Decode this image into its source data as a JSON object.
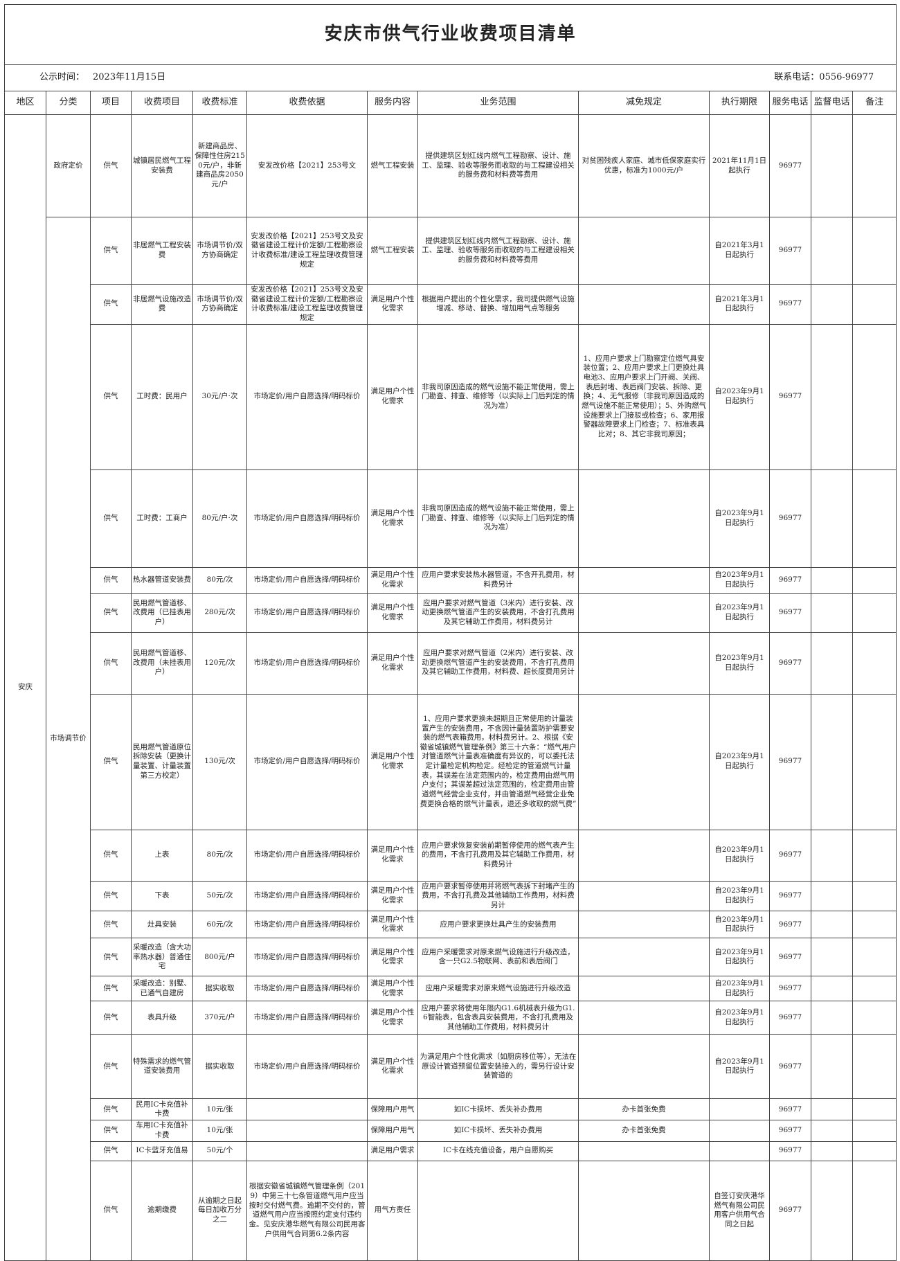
{
  "header": {
    "title": "安庆市供气行业收费项目清单",
    "date_label": "公示时间：",
    "date": "2023年11月15日",
    "phone_label": "联系电话：",
    "phone": "0556-96977"
  },
  "table": {
    "columns": [
      "地区",
      "分类",
      "项目",
      "收费项目",
      "收费标准",
      "收费依据",
      "服务内容",
      "业务范围",
      "减免规定",
      "执行期限",
      "服务电话",
      "监督电话",
      "备注"
    ],
    "region": "安庆",
    "groups": [
      {
        "label": "政府定价",
        "rows": 1
      },
      {
        "label": "市场调节价",
        "rows": 19
      }
    ],
    "rows": [
      {
        "item": "供气",
        "name": "城镇居民燃气工程安装费",
        "standard": "新建商品房、保障性住房2150元/户，非新建商品房2050元/户",
        "basis": "安发改价格【2021】253号文",
        "service": "燃气工程安装",
        "scope": "提供建筑区划红线内燃气工程勘察、设计、施工、监理、验收等服务而收取的与工程建设相关的服务费和材料费等费用",
        "relief": "对贫困残疾人家庭、城市低保家庭实行优惠，标准为1000元/户",
        "period": "2021年11月1日起执行",
        "phone": "96977"
      },
      {
        "item": "供气",
        "name": "非居燃气工程安装费",
        "standard": "市场调节价/双方协商确定",
        "basis": "安发改价格【2021】253号文及安徽省建设工程计价定额/工程勘察设计收费标准/建设工程监理收费管理规定",
        "service": "燃气工程安装",
        "scope": "提供建筑区划红线内燃气工程勘察、设计、施工、监理、验收等服务而收取的与工程建设相关的服务费和材料费等费用",
        "period": "自2021年3月1日起执行",
        "phone": "96977"
      },
      {
        "item": "供气",
        "name": "非居燃气设施改造费",
        "standard": "市场调节价/双方协商确定",
        "basis": "安发改价格【2021】253号文及安徽省建设工程计价定额/工程勘察设计收费标准/建设工程监理收费管理规定",
        "service": "满足用户个性化需求",
        "scope": "根据用户提出的个性化需求，我司提供燃气设施增减、移动、替换、增加用气点等服务",
        "period": "自2021年3月1日起执行",
        "phone": "96977"
      },
      {
        "item": "供气",
        "name": "工时费：民用户",
        "standard": "30元/户·次",
        "basis": "市场定价/用户自愿选择/明码标价",
        "service": "满足用户个性化需求",
        "scope": "非我司原因造成的燃气设施不能正常使用，需上门勘查、排查、维修等（以实际上门后判定的情况为准）",
        "relief": "1、应用户要求上门勘察定位燃气具安装位置；2、应用户要求上门更换灶具电池3、应用户要求上门开阀、关阀、表后封堵、表后阀门安装、拆除、更换；4、无气报修（非我司原因造成的燃气设施不能正常使用）；5、外购燃气设施要求上门接驳或检查；6、家用报警器故障要求上门检查；7、标准表具比对；8、其它非我司原因；",
        "period": "自2023年9月1日起执行",
        "phone": "96977"
      },
      {
        "item": "供气",
        "name": "工时费：工商户",
        "standard": "80元/户·次",
        "basis": "市场定价/用户自愿选择/明码标价",
        "service": "满足用户个性化需求",
        "scope": "非我司原因造成的燃气设施不能正常使用，需上门勘查、排查、维修等（以实际上门后判定的情况为准）",
        "period": "自2023年9月1日起执行",
        "phone": "96977"
      },
      {
        "item": "供气",
        "name": "热水器管道安装费",
        "standard": "80元/次",
        "basis": "市场定价/用户自愿选择/明码标价",
        "service": "满足用户个性化需求",
        "scope": "应用户要求安装热水器管道，不含开孔费用，材料费另计",
        "period": "自2023年9月1日起执行",
        "phone": "96977"
      },
      {
        "item": "供气",
        "name": "民用燃气管道移、改费用（已挂表用户）",
        "standard": "280元/次",
        "basis": "市场定价/用户自愿选择/明码标价",
        "service": "满足用户个性化需求",
        "scope": "应用户要求对燃气管道（3米内）进行安装、改动更换燃气管道产生的安装费用，不含打孔费用及其它辅助工作费用，材料费另计",
        "period": "自2023年9月1日起执行",
        "phone": "96977"
      },
      {
        "item": "供气",
        "name": "民用燃气管道移、改费用（未挂表用户）",
        "standard": "120元/次",
        "basis": "市场定价/用户自愿选择/明码标价",
        "service": "满足用户个性化需求",
        "scope": "应用户要求对燃气管道（2米内）进行安装、改动更换燃气管道产生的安装费用，不含打孔费用及其它辅助工作费用，材料费、超长度费用另计",
        "period": "自2023年9月1日起执行",
        "phone": "96977"
      },
      {
        "item": "供气",
        "name": "民用燃气管道原位拆除安装（更换计量装置、计量装置第三方校定）",
        "standard": "130元/次",
        "basis": "市场定价/用户自愿选择/明码标价",
        "service": "满足用户个性化需求",
        "scope": "1、应用户要求更换未超期且正常使用的计量装置产生的安装费用，不含因计量装置防护需要安装的燃气表箱费用，材料费另计。2、根据《安徽省城镇燃气管理条例》第三十六条：“燃气用户对管道燃气计量表准确度有异议的，可以委托法定计量检定机构检定。经检定的管道燃气计量表，其误差在法定范围内的，检定费用由燃气用户支付；其误差超过法定范围的，检定费用由管道燃气经营企业支付，并由管道燃气经营企业免费更换合格的燃气计量表，退还多收取的燃气费”",
        "period": "自2023年9月1日起执行",
        "phone": "96977"
      },
      {
        "item": "供气",
        "name": "上表",
        "standard": "80元/次",
        "basis": "市场定价/用户自愿选择/明码标价",
        "service": "满足用户个性化需求",
        "scope": "应用户要求恢复安装前期暂停使用的燃气表产生的费用，不含打孔费用及其它辅助工作费用，材料费另计",
        "period": "自2023年9月1日起执行",
        "phone": "96977"
      },
      {
        "item": "供气",
        "name": "下表",
        "standard": "50元/次",
        "basis": "市场定价/用户自愿选择/明码标价",
        "service": "满足用户个性化需求",
        "scope": "应用户要求暂停使用并将燃气表拆下封堵产生的费用，不含打孔费及其他辅助工作费用，材料费另计",
        "period": "自2023年9月1日起执行",
        "phone": "96977"
      },
      {
        "item": "供气",
        "name": "灶具安装",
        "standard": "60元/次",
        "basis": "市场定价/用户自愿选择/明码标价",
        "service": "满足用户个性化需求",
        "scope": "应用户要求更换灶具产生的安装费用",
        "period": "自2023年9月1日起执行",
        "phone": "96977"
      },
      {
        "item": "供气",
        "name": "采暖改造（含大功率热水器）普通住宅",
        "standard": "800元/户",
        "basis": "市场定价/用户自愿选择/明码标价",
        "service": "满足用户个性化需求",
        "scope": "应用户采暖需求对原来燃气设施进行升级改造，含一只G2.5物联网、表前和表后阀门",
        "period": "自2023年9月1日起执行",
        "phone": "96977"
      },
      {
        "item": "供气",
        "name": "采暖改造：别墅、已通气自建房",
        "standard": "据实收取",
        "basis": "市场定价/用户自愿选择/明码标价",
        "service": "满足用户个性化需求",
        "scope": "应用户采暖需求对原来燃气设施进行升级改造",
        "period": "自2023年9月1日起执行",
        "phone": "96977"
      },
      {
        "item": "供气",
        "name": "表具升级",
        "standard": "370元/户",
        "basis": "市场定价/用户自愿选择/明码标价",
        "service": "满足用户个性化需求",
        "scope": "应用户要求将使用年限内G1.6机械表升级为G1.6智能表，包含表具安装费用，不含打孔费用及其他辅助工作费用，材料费另计",
        "period": "自2023年9月1日起执行",
        "phone": "96977"
      },
      {
        "item": "供气",
        "name": "特殊需求的燃气管道安装费用",
        "standard": "据实收取",
        "basis": "市场定价/用户自愿选择/明码标价",
        "service": "满足用户个性化需求",
        "scope": "为满足用户个性化需求（如厨房移位等），无法在原设计管道预留位置安装接入的，需另行设计安装管道的",
        "period": "自2023年9月1日起执行",
        "phone": "96977"
      },
      {
        "item": "供气",
        "name": "民用IC卡充值补卡费",
        "standard": "10元/张",
        "service": "保障用户用气",
        "scope": "如IC卡损坏、丢失补办费用",
        "relief": "办卡首张免费",
        "phone": "96977"
      },
      {
        "item": "供气",
        "name": "车用IC卡充值补卡费",
        "standard": "10元/张",
        "service": "保障用户用气",
        "scope": "如IC卡损坏、丢失补办费用",
        "relief": "办卡首张免费",
        "phone": "96977"
      },
      {
        "item": "供气",
        "name": "IC卡蓝牙充值易",
        "standard": "50元/个",
        "service": "满足用户需求",
        "scope": "IC卡在线充值设备，用户自愿购买",
        "phone": "96977"
      },
      {
        "item": "供气",
        "name": "逾期缴费",
        "standard": "从逾期之日起每日加收万分之二",
        "basis": "根据安徽省城镇燃气管理条例（2019）中第三十七条管道燃气用户应当按时交付燃气费。逾期不交付的，管道燃气用户应当按照约定支付违约金。见安庆港华燃气有限公司民用客户供用气合同第6.2条内容",
        "service": "用气方责任",
        "period": "自签订安庆港华燃气有限公司民用客户供用气合同之日起",
        "phone": "96977"
      }
    ]
  }
}
